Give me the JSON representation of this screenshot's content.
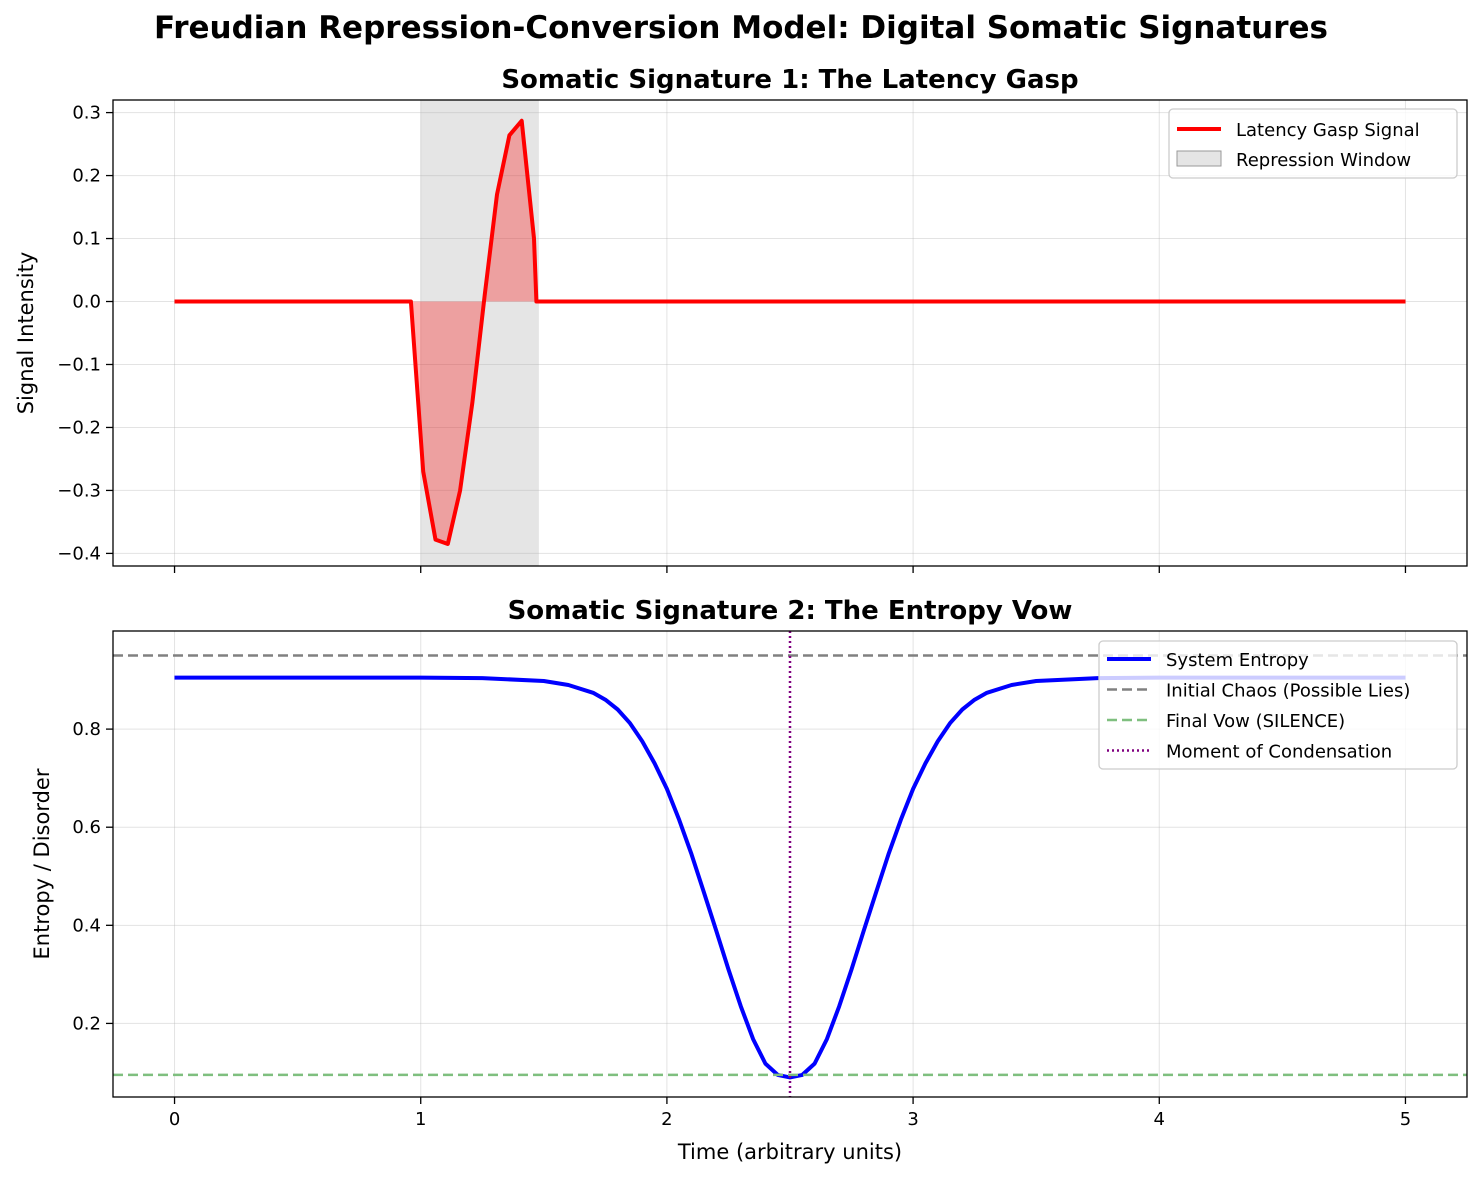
{
  "figure": {
    "suptitle": "Freudian Repression-Conversion Model: Digital Somatic Signatures",
    "xlabel": "Time (arbitrary units)"
  },
  "chart_data": [
    {
      "type": "line",
      "title": "Somatic Signature 1: The Latency Gasp",
      "xlabel": "",
      "ylabel": "Signal Intensity",
      "xlim": [
        -0.25,
        5.25
      ],
      "ylim": [
        -0.42,
        0.32
      ],
      "xticks": [
        "0",
        "1",
        "2",
        "3",
        "4",
        "5"
      ],
      "yticks": [
        "0.3",
        "0.2",
        "0.1",
        "0.0",
        "−0.1",
        "−0.2",
        "−0.3",
        "−0.4"
      ],
      "grid": true,
      "legend_position": "top-right",
      "series": [
        {
          "name": "Latency Gasp Signal",
          "color": "#ff0000",
          "x": [
            0,
            0.96,
            1.01,
            1.06,
            1.11,
            1.16,
            1.21,
            1.26,
            1.31,
            1.36,
            1.41,
            1.46,
            1.47,
            1.5,
            2.0,
            2.5,
            3.0,
            3.5,
            4.0,
            4.5,
            5.0
          ],
          "y": [
            0,
            0,
            -0.27,
            -0.378,
            -0.385,
            -0.3,
            -0.16,
            0.01,
            0.17,
            0.264,
            0.287,
            0.1,
            0,
            0,
            0,
            0,
            0,
            0,
            0,
            0,
            0
          ]
        }
      ],
      "shaded_region": {
        "name": "Repression Window",
        "x": [
          1.0,
          1.48
        ],
        "color": "#bdbdbd"
      }
    },
    {
      "type": "line",
      "title": "Somatic Signature 2: The Entropy Vow",
      "xlabel": "Time (arbitrary units)",
      "ylabel": "Entropy / Disorder",
      "xlim": [
        -0.25,
        5.25
      ],
      "ylim": [
        0.05,
        1.0
      ],
      "xticks": [
        "0",
        "1",
        "2",
        "3",
        "4",
        "5"
      ],
      "yticks": [
        "0.8",
        "0.6",
        "0.4",
        "0.2"
      ],
      "grid": true,
      "legend_position": "top-right",
      "series": [
        {
          "name": "System Entropy",
          "color": "#0000ff",
          "x": [
            0,
            0.5,
            1.0,
            1.25,
            1.5,
            1.6,
            1.7,
            1.75,
            1.8,
            1.85,
            1.9,
            1.95,
            2.0,
            2.05,
            2.1,
            2.15,
            2.2,
            2.25,
            2.3,
            2.35,
            2.4,
            2.45,
            2.5,
            2.55,
            2.6,
            2.65,
            2.7,
            2.75,
            2.8,
            2.85,
            2.9,
            2.95,
            3.0,
            3.05,
            3.1,
            3.15,
            3.2,
            3.25,
            3.3,
            3.4,
            3.5,
            3.75,
            4.0,
            4.5,
            5.0
          ],
          "y": [
            0.905,
            0.905,
            0.905,
            0.904,
            0.898,
            0.89,
            0.874,
            0.86,
            0.84,
            0.812,
            0.775,
            0.73,
            0.678,
            0.615,
            0.545,
            0.468,
            0.39,
            0.31,
            0.235,
            0.168,
            0.118,
            0.095,
            0.09,
            0.095,
            0.118,
            0.168,
            0.235,
            0.31,
            0.39,
            0.468,
            0.545,
            0.615,
            0.678,
            0.73,
            0.775,
            0.812,
            0.84,
            0.86,
            0.874,
            0.89,
            0.898,
            0.904,
            0.905,
            0.905,
            0.905
          ]
        },
        {
          "name": "Initial Chaos (Possible Lies)",
          "kind": "hline",
          "y": 0.95,
          "color": "#808080"
        },
        {
          "name": "Final Vow (SILENCE)",
          "kind": "hline",
          "y": 0.095,
          "color": "#7fbf7f"
        },
        {
          "name": "Moment of Condensation",
          "kind": "vline",
          "x": 2.5,
          "color": "#800080"
        }
      ]
    }
  ]
}
